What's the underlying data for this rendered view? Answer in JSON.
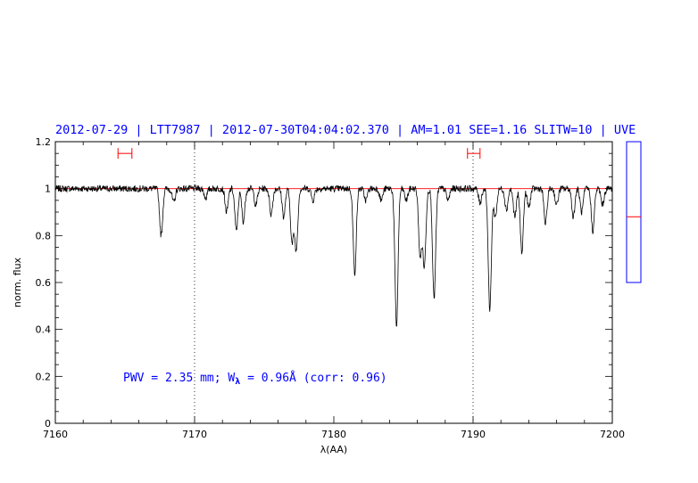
{
  "chart_data": {
    "type": "line",
    "title": "2012-07-29 | LTT7987 | 2012-07-30T04:04:02.370 | AM=1.01 SEE=1.16 SLITW=10 | UVE",
    "xlabel": "λ(AA)",
    "ylabel": "norm. flux",
    "xlim": [
      7160,
      7200
    ],
    "ylim": [
      0,
      1.2
    ],
    "x_ticks": [
      {
        "value": 7160,
        "label": "7160"
      },
      {
        "value": 7170,
        "label": "7170"
      },
      {
        "value": 7180,
        "label": "7180"
      },
      {
        "value": 7190,
        "label": "7190"
      },
      {
        "value": 7200,
        "label": "7200"
      }
    ],
    "y_ticks": [
      {
        "value": 0,
        "label": "0"
      },
      {
        "value": 0.2,
        "label": "0.2"
      },
      {
        "value": 0.4,
        "label": "0.4"
      },
      {
        "value": 0.6,
        "label": "0.6"
      },
      {
        "value": 0.8,
        "label": "0.8"
      },
      {
        "value": 1,
        "label": "1"
      },
      {
        "value": 1.2,
        "label": "1.2"
      }
    ],
    "annotation": {
      "prefix": "PWV = 2.35 mm; W",
      "subscript": "λ",
      "suffix": " = 0.96Å (corr: 0.96)"
    },
    "vertical_dotted_lines": [
      7170,
      7190
    ],
    "continuum_level": 1.0,
    "intervals": [
      [
        7164.5,
        7165.5
      ],
      [
        7189.6,
        7190.5
      ]
    ],
    "interval_y": 1.15,
    "absorption_lines": [
      {
        "x": 7167.6,
        "depth": 0.2
      },
      {
        "x": 7168.5,
        "depth": 0.06
      },
      {
        "x": 7170.8,
        "depth": 0.04
      },
      {
        "x": 7172.3,
        "depth": 0.1
      },
      {
        "x": 7173.0,
        "depth": 0.18
      },
      {
        "x": 7173.5,
        "depth": 0.14
      },
      {
        "x": 7174.4,
        "depth": 0.07
      },
      {
        "x": 7175.5,
        "depth": 0.11
      },
      {
        "x": 7176.4,
        "depth": 0.12
      },
      {
        "x": 7177.0,
        "depth": 0.23
      },
      {
        "x": 7177.3,
        "depth": 0.26
      },
      {
        "x": 7178.5,
        "depth": 0.05
      },
      {
        "x": 7181.5,
        "depth": 0.36
      },
      {
        "x": 7182.3,
        "depth": 0.05
      },
      {
        "x": 7183.4,
        "depth": 0.05
      },
      {
        "x": 7184.5,
        "depth": 0.59
      },
      {
        "x": 7185.2,
        "depth": 0.05
      },
      {
        "x": 7186.2,
        "depth": 0.29
      },
      {
        "x": 7186.5,
        "depth": 0.33
      },
      {
        "x": 7187.2,
        "depth": 0.47
      },
      {
        "x": 7188.2,
        "depth": 0.05
      },
      {
        "x": 7190.5,
        "depth": 0.06
      },
      {
        "x": 7191.2,
        "depth": 0.52
      },
      {
        "x": 7191.6,
        "depth": 0.12
      },
      {
        "x": 7192.4,
        "depth": 0.09
      },
      {
        "x": 7193.0,
        "depth": 0.12
      },
      {
        "x": 7193.5,
        "depth": 0.27
      },
      {
        "x": 7194.0,
        "depth": 0.08
      },
      {
        "x": 7195.2,
        "depth": 0.15
      },
      {
        "x": 7196.0,
        "depth": 0.07
      },
      {
        "x": 7197.2,
        "depth": 0.12
      },
      {
        "x": 7197.8,
        "depth": 0.1
      },
      {
        "x": 7198.6,
        "depth": 0.18
      },
      {
        "x": 7199.3,
        "depth": 0.07
      }
    ],
    "side_panel": {
      "ylim": [
        0,
        1.2
      ],
      "ymin_drawn": 0.6,
      "marker": 0.88
    },
    "colors": {
      "title": "#0000ff",
      "annotation": "#0000ff",
      "spectrum": "#000000",
      "continuum": "#ff0000",
      "intervals": "#ff0000",
      "side_panel_frame": "#0000ff",
      "side_panel_marker": "#ff0000"
    }
  }
}
